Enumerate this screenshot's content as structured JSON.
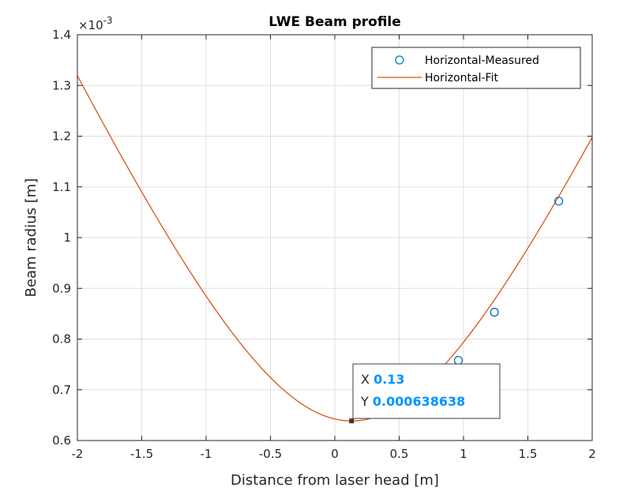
{
  "chart_data": {
    "type": "line",
    "title": "LWE Beam profile",
    "xlabel": "Distance from laser head [m]",
    "ylabel": "Beam radius [m]",
    "y_exponent_label": "×10",
    "y_exponent_power": "-3",
    "xlim": [
      -2,
      2
    ],
    "ylim": [
      0.6,
      1.4
    ],
    "y_display_scale": 0.001,
    "xticks": [
      -2,
      -1.5,
      -1,
      -0.5,
      0,
      0.5,
      1,
      1.5,
      2
    ],
    "xtick_labels": [
      "-2",
      "-1.5",
      "-1",
      "-0.5",
      "0",
      "0.5",
      "1",
      "1.5",
      "2"
    ],
    "yticks": [
      0.6,
      0.7,
      0.8,
      0.9,
      1.0,
      1.1,
      1.2,
      1.3,
      1.4
    ],
    "ytick_labels": [
      "0.6",
      "0.7",
      "0.8",
      "0.9",
      "1",
      "1.1",
      "1.2",
      "1.3",
      "1.4"
    ],
    "grid": true,
    "legend_position": "top-right",
    "series": [
      {
        "name": "Horizontal-Measured",
        "style": "markers",
        "marker": "circle",
        "color": "#0072BD",
        "x": [
          0.96,
          1.24,
          1.74
        ],
        "y": [
          0.758,
          0.853,
          1.072
        ]
      },
      {
        "name": "Horizontal-Fit",
        "style": "line",
        "color": "#D95319",
        "fit_model": {
          "w0": 0.63864,
          "z0": 0.13,
          "zr": 1.1785
        },
        "x_range": [
          -2,
          2
        ]
      }
    ],
    "datatip": {
      "x_label": "X",
      "x_value": "0.13",
      "y_label": "Y",
      "y_value": "0.000638638",
      "point": {
        "x": 0.13,
        "y": 0.638638
      },
      "value_color": "#0095ff",
      "marker_color": "#3a3a1a"
    }
  }
}
